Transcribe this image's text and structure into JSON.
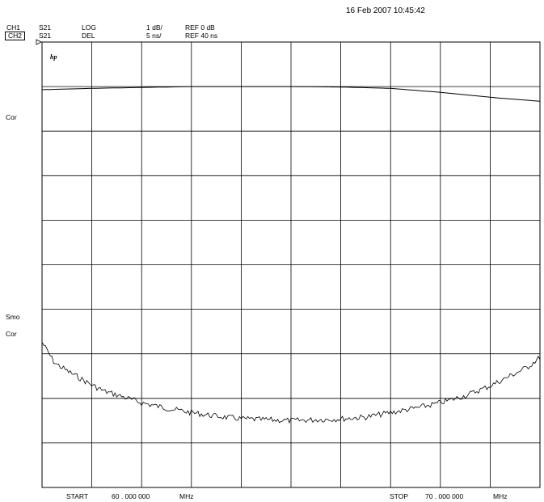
{
  "header": {
    "timestamp": "16 Feb 2007  10:45:42",
    "channels": [
      {
        "channel": "CH1",
        "param": "S21",
        "format": "LOG",
        "scale": "1 dB/",
        "ref": "REF 0 dB",
        "active": false
      },
      {
        "channel": "CH2",
        "param": "S21",
        "format": "DEL",
        "scale": "5 ns/",
        "ref": "REF 40 ns",
        "active": true
      }
    ]
  },
  "side_labels": {
    "ch1_cor": "Cor",
    "ch2_smo": "Smo",
    "ch2_cor": "Cor"
  },
  "logo": "hp",
  "footer": {
    "start_label": "START",
    "start_value": "60 . 000   000",
    "start_unit": "MHz",
    "stop_label": "STOP",
    "stop_value": "70 . 000   000",
    "stop_unit": "MHz"
  },
  "chart_data": {
    "type": "line",
    "grid": true,
    "grid_divisions": {
      "x": 10,
      "y": 10
    },
    "x_range": [
      60,
      70
    ],
    "x_unit": "MHz",
    "series": [
      {
        "channel": "CH1",
        "quantity": "S21 LOG",
        "unit": "dB",
        "ref_value": 0,
        "scale_per_div": 1,
        "ref_division_from_top": 1,
        "x": [
          60.0,
          61.0,
          62.0,
          63.0,
          64.0,
          65.0,
          66.0,
          67.0,
          68.0,
          69.0,
          70.0
        ],
        "values": [
          -0.07,
          -0.04,
          -0.02,
          0.0,
          0.0,
          0.0,
          -0.01,
          -0.04,
          -0.13,
          -0.24,
          -0.33
        ]
      },
      {
        "channel": "CH2",
        "quantity": "S21 DEL",
        "unit": "ns",
        "ref_value": 40,
        "scale_per_div": 5,
        "ref_division_from_top": 5,
        "x": [
          60.0,
          60.25,
          60.5,
          60.75,
          61.0,
          61.25,
          61.5,
          62.0,
          62.5,
          63.0,
          63.5,
          64.0,
          64.5,
          65.0,
          65.5,
          66.0,
          66.5,
          67.0,
          67.5,
          68.0,
          68.5,
          69.0,
          69.25,
          69.5,
          69.75,
          70.0
        ],
        "values": [
          31.3,
          29.0,
          28.1,
          27.3,
          26.5,
          25.8,
          25.4,
          24.5,
          23.9,
          23.4,
          23.0,
          22.7,
          22.6,
          22.5,
          22.6,
          22.7,
          22.9,
          23.4,
          23.9,
          24.5,
          25.3,
          26.4,
          27.1,
          27.8,
          28.5,
          29.6
        ]
      }
    ]
  },
  "colors": {
    "trace": "#000000",
    "grid": "#000000",
    "background": "#ffffff"
  }
}
